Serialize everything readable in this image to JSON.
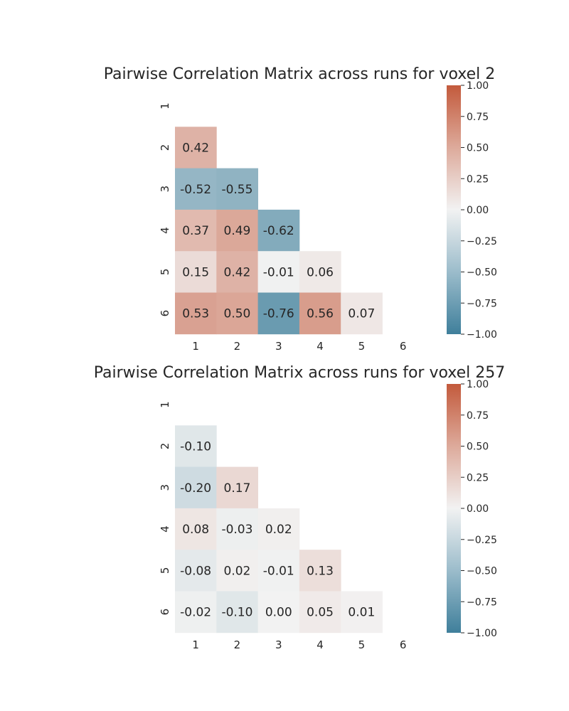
{
  "chart_data": [
    {
      "type": "heatmap",
      "title": "Pairwise Correlation Matrix across runs for voxel 2",
      "x_ticks": [
        "1",
        "2",
        "3",
        "4",
        "5",
        "6"
      ],
      "y_ticks": [
        "1",
        "2",
        "3",
        "4",
        "5",
        "6"
      ],
      "mask": "lower-triangle",
      "values": [
        [
          null,
          null,
          null,
          null,
          null,
          null
        ],
        [
          0.42,
          null,
          null,
          null,
          null,
          null
        ],
        [
          -0.52,
          -0.55,
          null,
          null,
          null,
          null
        ],
        [
          0.37,
          0.49,
          -0.62,
          null,
          null,
          null
        ],
        [
          0.15,
          0.42,
          -0.01,
          0.06,
          null,
          null
        ],
        [
          0.53,
          0.5,
          -0.76,
          0.56,
          0.07,
          null
        ]
      ],
      "labels": [
        [
          null,
          null,
          null,
          null,
          null,
          null
        ],
        [
          "0.42",
          null,
          null,
          null,
          null,
          null
        ],
        [
          "-0.52",
          "-0.55",
          null,
          null,
          null,
          null
        ],
        [
          "0.37",
          "0.49",
          "-0.62",
          null,
          null,
          null
        ],
        [
          "0.15",
          "0.42",
          "-0.01",
          "0.06",
          null,
          null
        ],
        [
          "0.53",
          "0.50",
          "-0.76",
          "0.56",
          "0.07",
          null
        ]
      ],
      "colorbar": {
        "vmin": -1.0,
        "vmax": 1.0,
        "ticks": [
          1.0,
          0.75,
          0.5,
          0.25,
          0.0,
          -0.25,
          -0.5,
          -0.75,
          -1.0
        ],
        "tick_labels": [
          "1.00",
          "0.75",
          "0.50",
          "0.25",
          "0.00",
          "−0.25",
          "−0.50",
          "−0.75",
          "−1.00"
        ],
        "colormap": {
          "negative": "#3f7f9b",
          "center": "#f2f2f2",
          "positive": "#c35a3c"
        }
      }
    },
    {
      "type": "heatmap",
      "title": "Pairwise Correlation Matrix across runs for voxel 257",
      "x_ticks": [
        "1",
        "2",
        "3",
        "4",
        "5",
        "6"
      ],
      "y_ticks": [
        "1",
        "2",
        "3",
        "4",
        "5",
        "6"
      ],
      "mask": "lower-triangle",
      "values": [
        [
          null,
          null,
          null,
          null,
          null,
          null
        ],
        [
          -0.1,
          null,
          null,
          null,
          null,
          null
        ],
        [
          -0.2,
          0.17,
          null,
          null,
          null,
          null
        ],
        [
          0.08,
          -0.03,
          0.02,
          null,
          null,
          null
        ],
        [
          -0.08,
          0.02,
          -0.01,
          0.13,
          null,
          null
        ],
        [
          -0.02,
          -0.1,
          0.0,
          0.05,
          0.01,
          null
        ]
      ],
      "labels": [
        [
          null,
          null,
          null,
          null,
          null,
          null
        ],
        [
          "-0.10",
          null,
          null,
          null,
          null,
          null
        ],
        [
          "-0.20",
          "0.17",
          null,
          null,
          null,
          null
        ],
        [
          "0.08",
          "-0.03",
          "0.02",
          null,
          null,
          null
        ],
        [
          "-0.08",
          "0.02",
          "-0.01",
          "0.13",
          null,
          null
        ],
        [
          "-0.02",
          "-0.10",
          "0.00",
          "0.05",
          "0.01",
          null
        ]
      ],
      "colorbar": {
        "vmin": -1.0,
        "vmax": 1.0,
        "ticks": [
          1.0,
          0.75,
          0.5,
          0.25,
          0.0,
          -0.25,
          -0.5,
          -0.75,
          -1.0
        ],
        "tick_labels": [
          "1.00",
          "0.75",
          "0.50",
          "0.25",
          "0.00",
          "−0.25",
          "−0.50",
          "−0.75",
          "−1.00"
        ],
        "colormap": {
          "negative": "#3f7f9b",
          "center": "#f2f2f2",
          "positive": "#c35a3c"
        }
      }
    }
  ]
}
